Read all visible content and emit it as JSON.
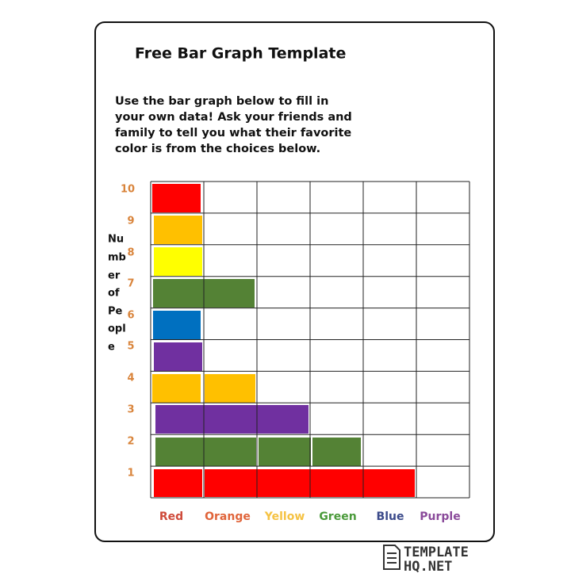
{
  "header": {
    "title": "Free Bar Graph Template"
  },
  "instructions": [
    "Use the bar graph below to fill in",
    "your own data! Ask your friends and",
    "family to tell you what their favorite",
    "color is from the choices below."
  ],
  "y_axis_label": [
    "Nu",
    "mb",
    "er",
    "of",
    "Pe",
    "opl",
    "e"
  ],
  "row_labels": [
    "10",
    "9",
    "8",
    "7",
    "6",
    "5",
    "4",
    "3",
    "2",
    "1"
  ],
  "column_labels": [
    "Red",
    "Orange",
    "Yellow",
    "Green",
    "Blue",
    "Purple"
  ],
  "logo": {
    "line1": "TEMPLATE",
    "line2": "HQ.NET"
  }
}
